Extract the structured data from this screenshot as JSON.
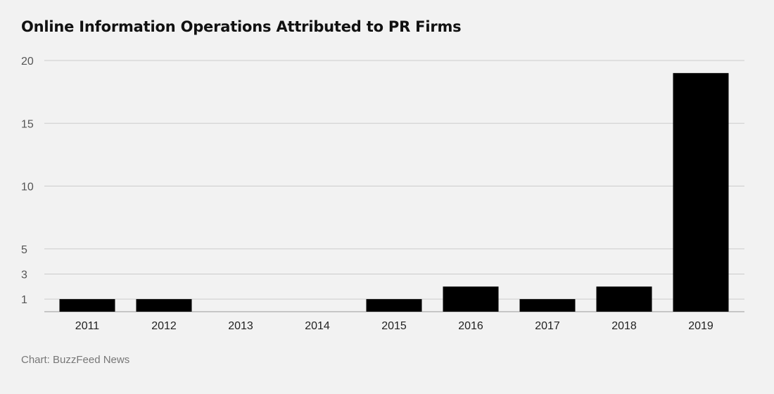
{
  "chart_data": {
    "type": "bar",
    "title": "Online Information Operations Attributed to PR Firms",
    "categories": [
      "2011",
      "2012",
      "2013",
      "2014",
      "2015",
      "2016",
      "2017",
      "2018",
      "2019"
    ],
    "values": [
      1,
      1,
      0,
      0,
      1,
      2,
      1,
      2,
      19
    ],
    "yticks": [
      1,
      3,
      5,
      10,
      15,
      20
    ],
    "ylim": [
      0,
      20
    ],
    "xlabel": "",
    "ylabel": "",
    "grid": true,
    "bar_color": "#000000",
    "grid_color": "#cccccc",
    "source": "Chart: BuzzFeed News"
  }
}
